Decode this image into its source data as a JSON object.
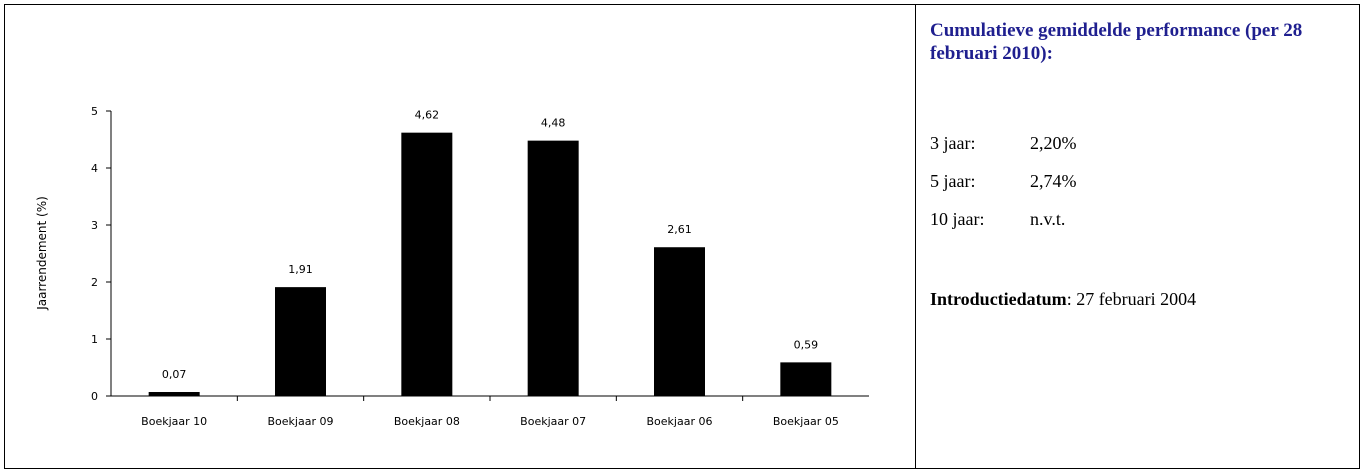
{
  "chart_data": {
    "type": "bar",
    "categories": [
      "Boekjaar 10",
      "Boekjaar 09",
      "Boekjaar 08",
      "Boekjaar 07",
      "Boekjaar 06",
      "Boekjaar 05"
    ],
    "values": [
      0.07,
      1.91,
      4.62,
      4.48,
      2.61,
      0.59
    ],
    "value_labels": [
      "0,07",
      "1,91",
      "4,62",
      "4,48",
      "2,61",
      "0,59"
    ],
    "ylabel": "Jaarrendement (%)",
    "ylim": [
      0,
      5
    ],
    "yticks": [
      0,
      1,
      2,
      3,
      4,
      5
    ],
    "bar_color": "#000000",
    "grid": false
  },
  "info": {
    "title": "Cumulatieve gemiddelde performance (per 28 februari 2010):",
    "title_color": "#1f1f8f",
    "rows": [
      {
        "label": "3 jaar:",
        "value": "2,20%"
      },
      {
        "label": "5 jaar:",
        "value": "2,74%"
      },
      {
        "label": "10 jaar:",
        "value": "n.v.t."
      }
    ],
    "intro_label": "Introductiedatum",
    "intro_value": ": 27 februari 2004"
  }
}
